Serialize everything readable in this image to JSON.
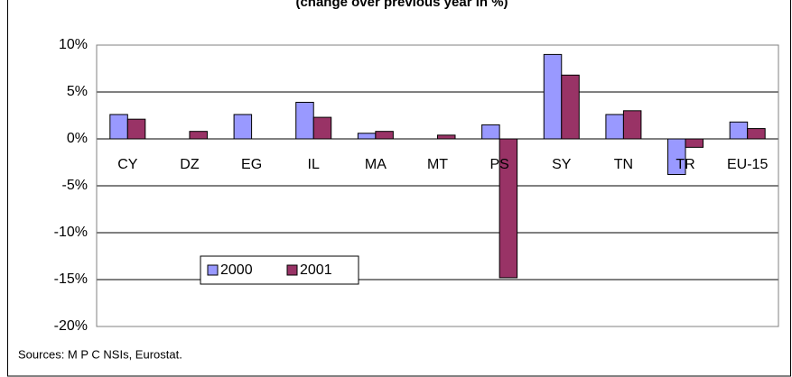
{
  "chart_data": {
    "type": "bar",
    "subtitle": "(change over previous year in %)",
    "categories": [
      "CY",
      "DZ",
      "EG",
      "IL",
      "MA",
      "MT",
      "PS",
      "SY",
      "TN",
      "TR",
      "EU-15"
    ],
    "series": [
      {
        "name": "2000",
        "color": "#9999ff",
        "values": [
          2.6,
          null,
          2.6,
          3.9,
          0.6,
          null,
          1.5,
          9.0,
          2.6,
          -3.8,
          1.8
        ]
      },
      {
        "name": "2001",
        "color": "#993366",
        "values": [
          2.1,
          0.8,
          null,
          2.3,
          0.8,
          0.4,
          -14.8,
          6.8,
          3.0,
          -0.9,
          1.1
        ]
      }
    ],
    "ylim": [
      -20,
      10
    ],
    "yticks": [
      {
        "value": -20,
        "label": "-20%"
      },
      {
        "value": -15,
        "label": "-15%"
      },
      {
        "value": -10,
        "label": "-10%"
      },
      {
        "value": -5,
        "label": "-5%"
      },
      {
        "value": 0,
        "label": "0%"
      },
      {
        "value": 5,
        "label": "5%"
      },
      {
        "value": 10,
        "label": "10%"
      }
    ],
    "grid": true,
    "legend": "lower-left",
    "note": "Sources: M P C NSIs, Eurostat."
  }
}
